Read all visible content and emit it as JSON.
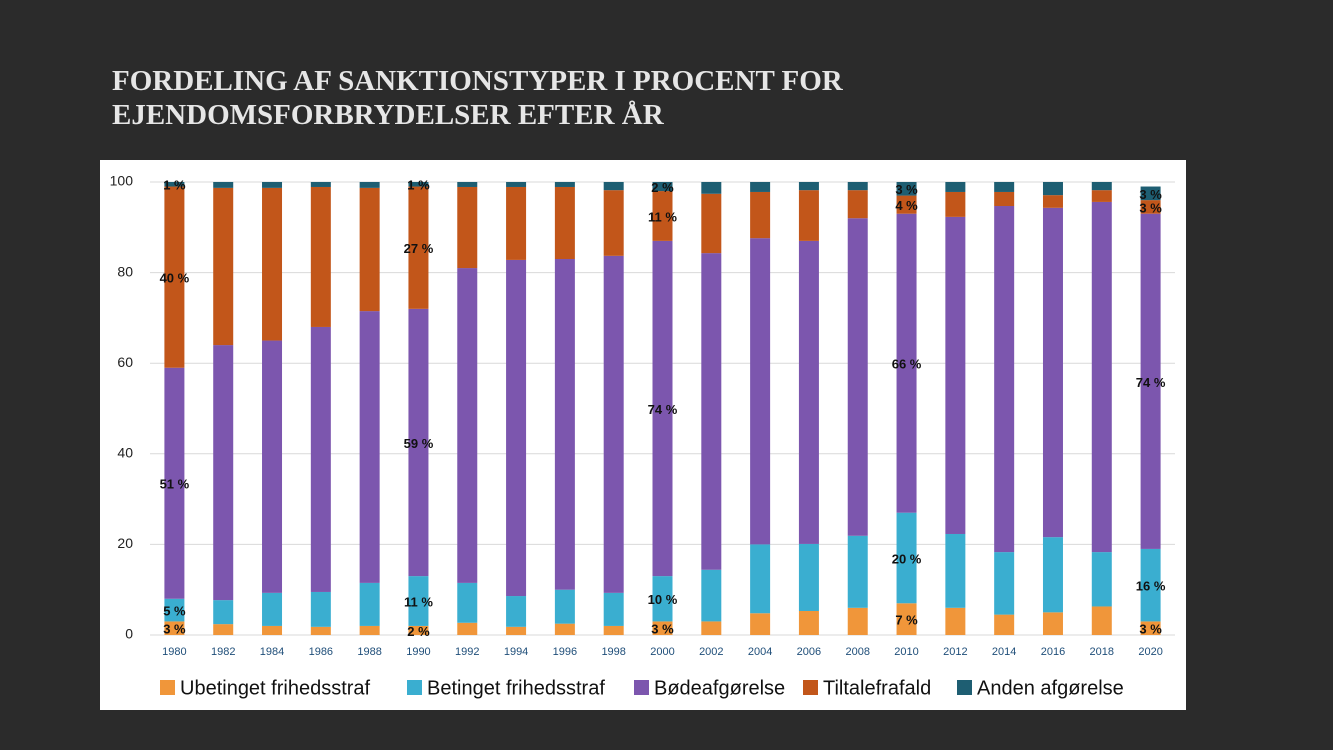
{
  "chart_data": {
    "type": "stacked_bar",
    "title": "FORDELING AF SANKTIONSTYPER I PROCENT FOR EJENDOMSFORBRYDELSER EFTER ÅR",
    "categories": [
      "1980",
      "1982",
      "1984",
      "1986",
      "1988",
      "1990",
      "1992",
      "1994",
      "1996",
      "1998",
      "2000",
      "2002",
      "2004",
      "2006",
      "2008",
      "2010",
      "2012",
      "2014",
      "2016",
      "2018",
      "2020"
    ],
    "series": [
      {
        "name": "Ubetinget frihedsstraf",
        "color": "#f0963a",
        "values": [
          3,
          2.4,
          2,
          1.8,
          2,
          2,
          2.7,
          1.8,
          2.5,
          2,
          3,
          3,
          4.8,
          5.3,
          6,
          7,
          6,
          4.5,
          5,
          6.3,
          3
        ],
        "value_labels": [
          "3 %",
          null,
          null,
          null,
          null,
          "2 %",
          null,
          null,
          null,
          null,
          "3 %",
          null,
          null,
          null,
          null,
          "7 %",
          null,
          null,
          null,
          null,
          "3 %"
        ]
      },
      {
        "name": "Betinget frihedsstraf",
        "color": "#3aaed0",
        "values": [
          5,
          5.3,
          7.3,
          7.7,
          9.5,
          11,
          8.8,
          6.8,
          7.5,
          7.3,
          10,
          11.4,
          15.2,
          14.8,
          15.9,
          20,
          16.3,
          13.8,
          16.6,
          12,
          16
        ],
        "value_labels": [
          "5 %",
          null,
          null,
          null,
          null,
          "11 %",
          null,
          null,
          null,
          null,
          "10 %",
          null,
          null,
          null,
          null,
          "20 %",
          null,
          null,
          null,
          null,
          "16 %"
        ]
      },
      {
        "name": "Bødeafgørelse",
        "color": "#7c56ae",
        "values": [
          51,
          56.3,
          55.7,
          58.5,
          60,
          59,
          69.5,
          74.2,
          73,
          74.4,
          74,
          69.9,
          67.6,
          66.9,
          70.1,
          66,
          70,
          76.4,
          72.7,
          77.3,
          74
        ],
        "value_labels": [
          "51 %",
          null,
          null,
          null,
          null,
          "59 %",
          null,
          null,
          null,
          null,
          "74 %",
          null,
          null,
          null,
          null,
          "66 %",
          null,
          null,
          null,
          null,
          "74 %"
        ]
      },
      {
        "name": "Tiltalefrafald",
        "color": "#c2561a",
        "values": [
          40,
          34.7,
          33.7,
          30.9,
          27.2,
          27,
          17.9,
          16.1,
          15.9,
          14.5,
          11,
          13.1,
          10.2,
          11.2,
          6.2,
          4,
          5.5,
          3.1,
          2.8,
          2.6,
          3
        ],
        "value_labels": [
          "40 %",
          null,
          null,
          null,
          null,
          "27 %",
          null,
          null,
          null,
          null,
          "11 %",
          null,
          null,
          null,
          null,
          "4 %",
          null,
          null,
          null,
          null,
          "3 %"
        ]
      },
      {
        "name": "Anden afgørelse",
        "color": "#1e5e72",
        "values": [
          1,
          1.3,
          1.3,
          1.1,
          1.3,
          1,
          1.1,
          1.1,
          1.1,
          1.8,
          2,
          2.6,
          2.2,
          1.8,
          1.8,
          3,
          2.2,
          2.2,
          2.9,
          1.8,
          3
        ],
        "value_labels": [
          "1 %",
          null,
          null,
          null,
          null,
          "1 %",
          null,
          null,
          null,
          null,
          "2 %",
          null,
          null,
          null,
          null,
          "3 %",
          null,
          null,
          null,
          null,
          "3 %"
        ]
      }
    ],
    "ylim": [
      0,
      100
    ],
    "yticks": [
      0,
      20,
      40,
      60,
      80,
      100
    ],
    "grid": true,
    "legend": "bottom"
  }
}
